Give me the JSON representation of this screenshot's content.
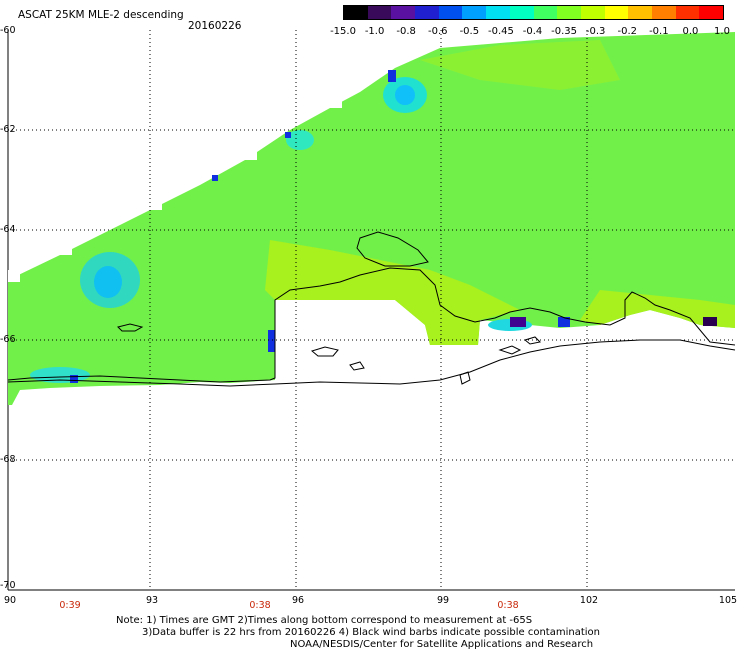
{
  "header": {
    "title": "ASCAT 25KM MLE-2 descending",
    "date": "20160226"
  },
  "colorbar": {
    "labels": [
      "-15.0",
      "-1.0",
      "-0.8",
      "-0.6",
      "-0.5",
      "-0.45",
      "-0.4",
      "-0.35",
      "-0.3",
      "-0.2",
      "-0.1",
      "0.0",
      "1.0"
    ],
    "colors": [
      "#000000",
      "#3a0a5a",
      "#5a10a0",
      "#2020d0",
      "#0050f0",
      "#00a0ff",
      "#00e0f0",
      "#00ffc0",
      "#40ff60",
      "#80ff20",
      "#c0ff00",
      "#ffff00",
      "#ffc000",
      "#ff8000",
      "#ff3000",
      "#ff0000"
    ]
  },
  "axes": {
    "lat_labels": [
      "-60",
      "-62",
      "-64",
      "-66",
      "-68",
      "-70"
    ],
    "lon_labels": [
      "90",
      "93",
      "96",
      "99",
      "102",
      "105"
    ],
    "time_labels": [
      "0:39",
      "0:38",
      "0:38"
    ]
  },
  "notes": {
    "line1": "Note: 1) Times are GMT 2)Times along bottom correspond to measurement at -65S",
    "line2": "3)Data buffer is 22 hrs from 20160226 4) Black wind barbs indicate possible contamination",
    "line3": "NOAA/NESDIS/Center for Satellite Applications and Research"
  }
}
